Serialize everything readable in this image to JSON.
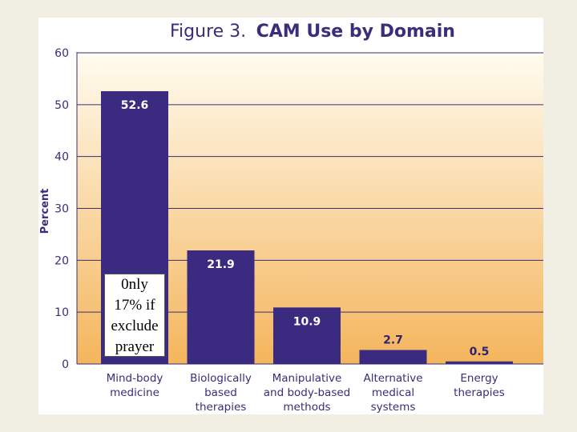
{
  "chart_data": {
    "type": "bar",
    "title_prefix": "Figure 3.",
    "title": "CAM Use by Domain",
    "xlabel": "",
    "ylabel": "Percent",
    "ylim": [
      0,
      60
    ],
    "yticks": [
      "0",
      "10",
      "20",
      "30",
      "40",
      "50",
      "60"
    ],
    "categories": [
      [
        "Mind-body",
        "medicine"
      ],
      [
        "Biologically",
        "based",
        "therapies"
      ],
      [
        "Manipulative",
        "and body-based",
        "methods"
      ],
      [
        "Alternative",
        "medical",
        "systems"
      ],
      [
        "Energy",
        "therapies"
      ]
    ],
    "values": [
      52.6,
      21.9,
      10.9,
      2.7,
      0.5
    ],
    "value_labels": [
      "52.6",
      "21.9",
      "10.9",
      "2.7",
      "0.5"
    ],
    "bar_color": "#3a2b80",
    "grid": true,
    "background_gradient": [
      "#fffcf0",
      "#f4b55c"
    ]
  },
  "annotation": {
    "lines": [
      "0nly",
      "17% if",
      "exclude",
      "prayer"
    ]
  }
}
